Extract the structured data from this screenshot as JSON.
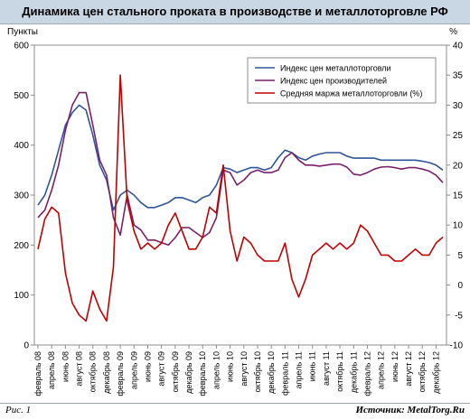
{
  "header": {
    "title": "Динамика цен стального проката в производстве и металлоторговле РФ"
  },
  "footer": {
    "figure_label": "Рис. 1",
    "source": "Источник: MetalTorg.Ru"
  },
  "chart_data": {
    "type": "line",
    "title": "Динамика цен стального проката в производстве и металлоторговле РФ",
    "ylabel_left": "Пункты",
    "ylabel_right": "%",
    "y_left_ticks": [
      "0",
      "100",
      "200",
      "300",
      "400",
      "500",
      "600"
    ],
    "y_right_ticks": [
      "-10",
      "-5",
      "0",
      "5",
      "10",
      "15",
      "20",
      "25",
      "30",
      "35",
      "40"
    ],
    "ylim_left": [
      0,
      600
    ],
    "ylim_right": [
      -10,
      40
    ],
    "grid": false,
    "legend_position": "top-right",
    "x_tick_labels": [
      "февраль 08",
      "апрель 08",
      "июнь 08",
      "август 08",
      "октябрь 08",
      "декабрь 08",
      "февраль 09",
      "апрель 09",
      "июнь 09",
      "август 09",
      "октябрь 09",
      "декабрь 09",
      "февраль 10",
      "апрель 10",
      "июнь 10",
      "август 10",
      "октябрь 10",
      "декабрь 10",
      "февраль 11",
      "апрель 11",
      "июнь 11",
      "август 11",
      "октябрь 11",
      "декабрь 11",
      "февраль 12",
      "апрель 12",
      "июнь 12",
      "август 12",
      "октябрь 12",
      "декабрь 12"
    ],
    "x_range": [
      0,
      59
    ],
    "series": [
      {
        "name": "Индекс цен металлоторговли",
        "axis": "left",
        "color": "#2f5597",
        "points": [
          [
            0,
            280
          ],
          [
            1,
            300
          ],
          [
            2,
            340
          ],
          [
            3,
            390
          ],
          [
            4,
            440
          ],
          [
            5,
            465
          ],
          [
            6,
            480
          ],
          [
            7,
            470
          ],
          [
            8,
            420
          ],
          [
            9,
            360
          ],
          [
            10,
            330
          ],
          [
            11,
            270
          ],
          [
            12,
            300
          ],
          [
            13,
            310
          ],
          [
            14,
            300
          ],
          [
            15,
            285
          ],
          [
            16,
            275
          ],
          [
            17,
            275
          ],
          [
            18,
            280
          ],
          [
            19,
            285
          ],
          [
            20,
            295
          ],
          [
            21,
            295
          ],
          [
            22,
            290
          ],
          [
            23,
            285
          ],
          [
            24,
            295
          ],
          [
            25,
            300
          ],
          [
            26,
            320
          ],
          [
            27,
            355
          ],
          [
            28,
            352
          ],
          [
            29,
            345
          ],
          [
            30,
            350
          ],
          [
            31,
            355
          ],
          [
            32,
            355
          ],
          [
            33,
            350
          ],
          [
            34,
            355
          ],
          [
            35,
            375
          ],
          [
            36,
            390
          ],
          [
            37,
            385
          ],
          [
            38,
            375
          ],
          [
            39,
            370
          ],
          [
            40,
            378
          ],
          [
            41,
            382
          ],
          [
            42,
            385
          ],
          [
            43,
            385
          ],
          [
            44,
            385
          ],
          [
            45,
            378
          ],
          [
            46,
            374
          ],
          [
            47,
            374
          ],
          [
            48,
            374
          ],
          [
            49,
            374
          ],
          [
            50,
            370
          ],
          [
            51,
            370
          ],
          [
            52,
            370
          ],
          [
            53,
            370
          ],
          [
            54,
            370
          ],
          [
            55,
            370
          ],
          [
            56,
            368
          ],
          [
            57,
            365
          ],
          [
            58,
            360
          ],
          [
            59,
            350
          ]
        ]
      },
      {
        "name": "Индекс цен производителей",
        "axis": "left",
        "color": "#7a1f6a",
        "points": [
          [
            0,
            255
          ],
          [
            1,
            270
          ],
          [
            2,
            310
          ],
          [
            3,
            360
          ],
          [
            4,
            430
          ],
          [
            5,
            480
          ],
          [
            6,
            505
          ],
          [
            7,
            505
          ],
          [
            8,
            440
          ],
          [
            9,
            370
          ],
          [
            10,
            340
          ],
          [
            11,
            255
          ],
          [
            12,
            220
          ],
          [
            13,
            300
          ],
          [
            14,
            240
          ],
          [
            15,
            230
          ],
          [
            16,
            210
          ],
          [
            17,
            210
          ],
          [
            18,
            205
          ],
          [
            19,
            200
          ],
          [
            20,
            215
          ],
          [
            21,
            235
          ],
          [
            22,
            235
          ],
          [
            23,
            225
          ],
          [
            24,
            215
          ],
          [
            25,
            225
          ],
          [
            26,
            255
          ],
          [
            27,
            350
          ],
          [
            28,
            345
          ],
          [
            29,
            320
          ],
          [
            30,
            330
          ],
          [
            31,
            345
          ],
          [
            32,
            350
          ],
          [
            33,
            345
          ],
          [
            34,
            345
          ],
          [
            35,
            350
          ],
          [
            36,
            375
          ],
          [
            37,
            385
          ],
          [
            38,
            370
          ],
          [
            39,
            360
          ],
          [
            40,
            360
          ],
          [
            41,
            358
          ],
          [
            42,
            360
          ],
          [
            43,
            362
          ],
          [
            44,
            362
          ],
          [
            45,
            356
          ],
          [
            46,
            342
          ],
          [
            47,
            340
          ],
          [
            48,
            345
          ],
          [
            49,
            352
          ],
          [
            50,
            356
          ],
          [
            51,
            357
          ],
          [
            52,
            355
          ],
          [
            53,
            352
          ],
          [
            54,
            355
          ],
          [
            55,
            355
          ],
          [
            56,
            352
          ],
          [
            57,
            348
          ],
          [
            58,
            340
          ],
          [
            59,
            325
          ]
        ]
      },
      {
        "name": "Средняя маржа металлоторговли (%)",
        "axis": "right",
        "color": "#c00000",
        "points": [
          [
            0,
            6
          ],
          [
            1,
            11
          ],
          [
            2,
            13
          ],
          [
            3,
            12
          ],
          [
            4,
            2
          ],
          [
            5,
            -3
          ],
          [
            6,
            -5
          ],
          [
            7,
            -6
          ],
          [
            8,
            -1
          ],
          [
            9,
            -4
          ],
          [
            10,
            -6
          ],
          [
            11,
            3
          ],
          [
            12,
            35
          ],
          [
            13,
            14
          ],
          [
            14,
            9
          ],
          [
            15,
            6
          ],
          [
            16,
            7
          ],
          [
            17,
            6
          ],
          [
            18,
            7
          ],
          [
            19,
            10
          ],
          [
            20,
            12
          ],
          [
            21,
            9
          ],
          [
            22,
            6
          ],
          [
            23,
            6
          ],
          [
            24,
            8
          ],
          [
            25,
            13
          ],
          [
            26,
            12
          ],
          [
            27,
            20
          ],
          [
            28,
            9
          ],
          [
            29,
            4
          ],
          [
            30,
            8
          ],
          [
            31,
            7
          ],
          [
            32,
            5
          ],
          [
            33,
            4
          ],
          [
            34,
            4
          ],
          [
            35,
            4
          ],
          [
            36,
            7
          ],
          [
            37,
            1
          ],
          [
            38,
            -2
          ],
          [
            39,
            1
          ],
          [
            40,
            5
          ],
          [
            41,
            6
          ],
          [
            42,
            7
          ],
          [
            43,
            6
          ],
          [
            44,
            7
          ],
          [
            45,
            6
          ],
          [
            46,
            7
          ],
          [
            47,
            10
          ],
          [
            48,
            9
          ],
          [
            49,
            7
          ],
          [
            50,
            5
          ],
          [
            51,
            5
          ],
          [
            52,
            4
          ],
          [
            53,
            4
          ],
          [
            54,
            5
          ],
          [
            55,
            6
          ],
          [
            56,
            5
          ],
          [
            57,
            5
          ],
          [
            58,
            7
          ],
          [
            59,
            8
          ]
        ]
      }
    ]
  }
}
